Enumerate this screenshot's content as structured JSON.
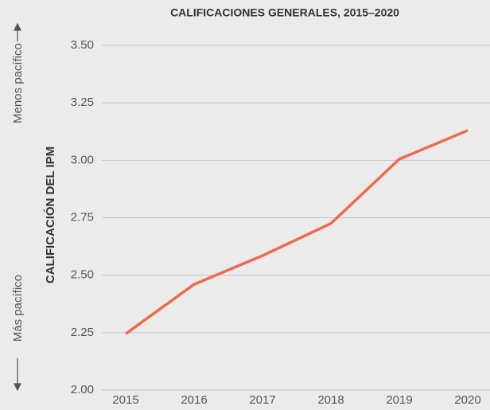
{
  "chart_data": {
    "type": "line",
    "title": "CALIFICACIONES GENERALES, 2015–2020",
    "y_label": "CALIFICACIÓN DEL IPM",
    "annotations": [
      "Menos pacífico",
      "Más pacífico"
    ],
    "categories": [
      "2015",
      "2016",
      "2017",
      "2018",
      "2019",
      "2020"
    ],
    "series": [
      {
        "name": "IPM",
        "color": "#ee6a4b",
        "values": [
          2.245,
          2.46,
          2.585,
          2.725,
          3.005,
          3.13
        ]
      }
    ],
    "ylim": [
      2.0,
      3.5
    ],
    "yticks": [
      {
        "value": 2.0,
        "label": "2.00"
      },
      2.25,
      {
        "value": 2.5,
        "label": "2.50"
      },
      2.75,
      {
        "value": 3.0,
        "label": "3.00"
      },
      3.25,
      {
        "value": 3.5,
        "label": "3.50"
      }
    ],
    "grid": true,
    "legend": false
  }
}
